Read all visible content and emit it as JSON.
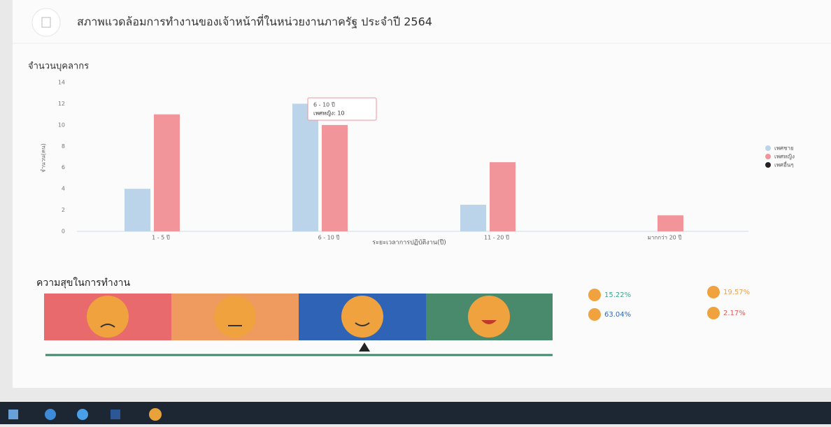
{
  "header": {
    "title": "สภาพแวดล้อมการทำงานของเจ้าหน้าที่ในหน่วยงานภาครัฐ ประจำปี 2564"
  },
  "chart_data": {
    "type": "bar",
    "title": "จำนวนบุคลากร",
    "x_label": "ระยะเวลาการปฏิบัติงาน(ปี)",
    "y_label": "จำนวน(คน)",
    "categories": [
      "1 - 5 ปี",
      "6 - 10 ปี",
      "11 - 20 ปี",
      "มากกว่า 20 ปี"
    ],
    "series": [
      {
        "name": "เพศชาย",
        "color": "#bcd4ea",
        "values": [
          4,
          12,
          2.5,
          0
        ]
      },
      {
        "name": "เพศหญิง",
        "color": "#f1959b",
        "values": [
          11,
          10,
          6.5,
          1.5
        ]
      },
      {
        "name": "เพศอื่นๆ",
        "color": "#222222",
        "values": [
          0,
          0,
          0,
          0
        ]
      }
    ],
    "ylim": [
      0,
      14
    ],
    "yticks": [
      0,
      2,
      4,
      6,
      8,
      10,
      12,
      14
    ],
    "grid": false,
    "legend": "right",
    "tooltip": {
      "title": "6 - 10 ปี",
      "label": "เพศหญิง: 10"
    }
  },
  "happiness": {
    "title": "ความสุขในการทำงาน",
    "values": [
      15.22,
      19.57,
      63.04,
      2.17
    ],
    "value_labels": [
      "15.22%",
      "19.57%",
      "63.04%",
      "2.17%"
    ],
    "colors": [
      "#3aa88e",
      "#f0a04b",
      "#2f68b8",
      "#e45b5b"
    ]
  }
}
